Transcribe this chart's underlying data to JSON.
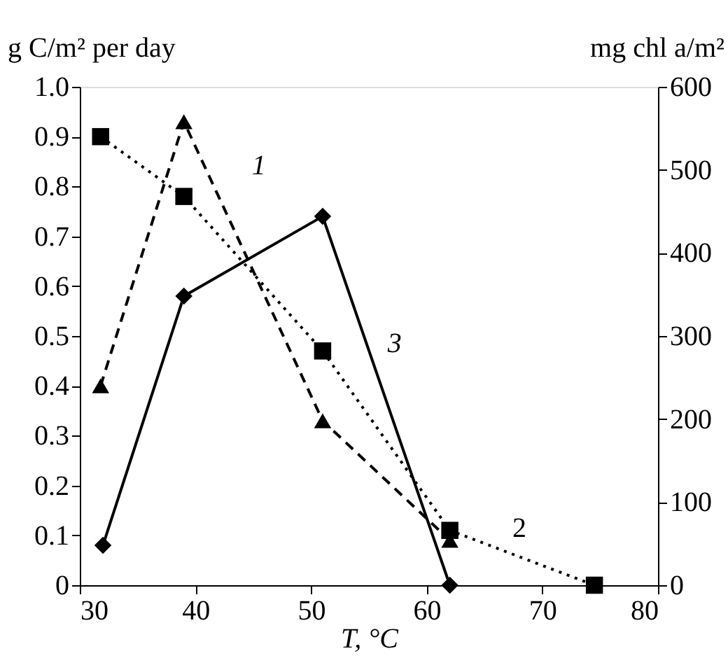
{
  "chart_data": {
    "type": "line",
    "xlabel": "T, °C",
    "ylabel": "g C/m² per day",
    "y2label": "mg chl a/m²",
    "xlim": [
      30,
      80
    ],
    "xticks": [
      30,
      40,
      50,
      60,
      70,
      80
    ],
    "ylim": [
      0,
      1
    ],
    "yticks": [
      0,
      0.1,
      0.2,
      0.3,
      0.4,
      0.5,
      0.6,
      0.7,
      0.8,
      0.9,
      {
        "value": 1,
        "label": "1.0"
      }
    ],
    "y2lim": [
      0,
      600
    ],
    "y2ticks": [
      0,
      100,
      200,
      300,
      400,
      500,
      600
    ],
    "grid": false,
    "series": [
      {
        "name": "1",
        "color": "#000000",
        "marker": "triangle",
        "line_style": "dashed",
        "x": [
          31.8,
          39,
          51,
          62
        ],
        "values": [
          0.4,
          0.93,
          0.33,
          0.09
        ]
      },
      {
        "name": "2",
        "color": "#000000",
        "marker": "square",
        "line_style": "dotted",
        "x": [
          31.8,
          39,
          51,
          62,
          74.5
        ],
        "values": [
          0.9,
          0.78,
          0.47,
          0.11,
          0
        ]
      },
      {
        "name": "3",
        "color": "#000000",
        "marker": "diamond",
        "line_style": "solid",
        "x": [
          32,
          39,
          51,
          62
        ],
        "values": [
          0.08,
          0.58,
          0.74,
          0
        ]
      }
    ]
  }
}
